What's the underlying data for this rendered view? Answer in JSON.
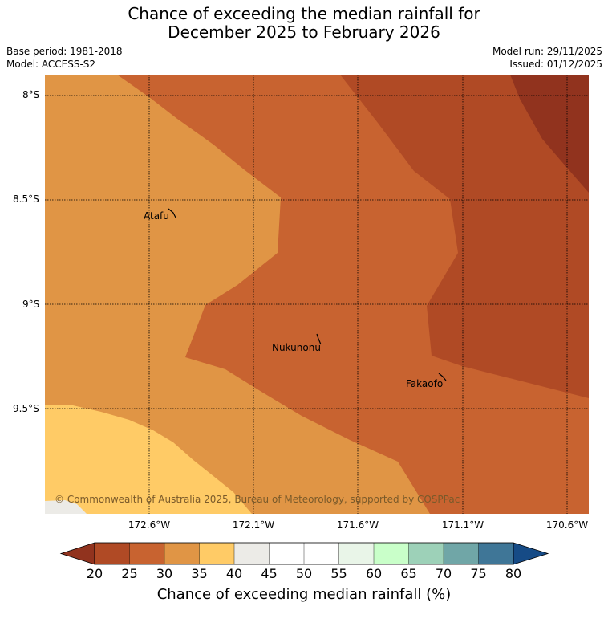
{
  "header": {
    "title_line1": "Chance of exceeding the median rainfall for",
    "title_line2": "December 2025 to February 2026",
    "base_period": "Base period: 1981-2018",
    "model": "Model: ACCESS-S2",
    "model_run": "Model run: 29/11/2025",
    "issued": "Issued: 01/12/2025"
  },
  "map": {
    "lon_labels": [
      "172.6°W",
      "172.1°W",
      "171.6°W",
      "171.1°W",
      "170.6°W"
    ],
    "lat_labels": [
      "8°S",
      "8.5°S",
      "9°S",
      "9.5°S"
    ],
    "places": [
      "Atafu",
      "Nukunonu",
      "Fakaofo"
    ],
    "copyright": "© Commonwealth of Australia 2025, Bureau of Meteorology, supported by COSPPac"
  },
  "colorbar": {
    "ticks": [
      "20",
      "25",
      "30",
      "35",
      "40",
      "45",
      "50",
      "55",
      "60",
      "65",
      "70",
      "75",
      "80"
    ],
    "colors": [
      "#b04a25",
      "#c86330",
      "#e09545",
      "#ffcb66",
      "#ecebe7",
      "#ffffff",
      "#ffffff",
      "#e9f5e8",
      "#c9ffc9",
      "#9dd1b8",
      "#70a6a7",
      "#3f7697"
    ],
    "low_color": "#91331e",
    "high_color": "#164b86",
    "label": "Chance of exceeding median rainfall (%)"
  }
}
